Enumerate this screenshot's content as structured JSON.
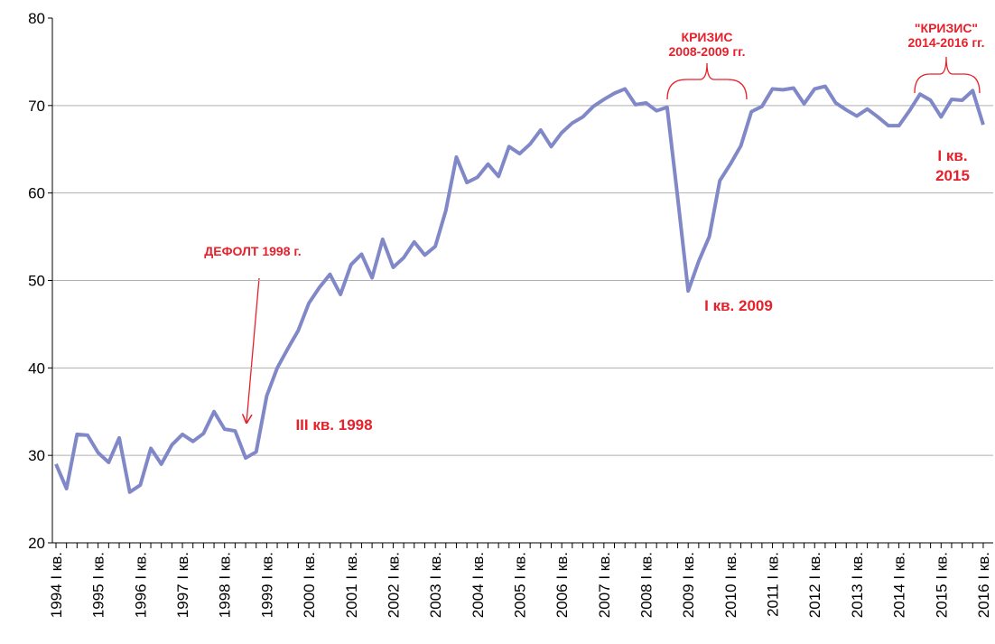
{
  "chart_data": {
    "type": "line",
    "categories": [
      "1994 I кв.",
      null,
      null,
      null,
      "1995 I кв.",
      null,
      null,
      null,
      "1996 I кв.",
      null,
      null,
      null,
      "1997 I кв.",
      null,
      null,
      null,
      "1998 I кв.",
      null,
      null,
      null,
      "1999 I кв.",
      null,
      null,
      null,
      "2000 I кв.",
      null,
      null,
      null,
      "2001 I кв.",
      null,
      null,
      null,
      "2002 I кв.",
      null,
      null,
      null,
      "2003 I кв.",
      null,
      null,
      null,
      "2004 I кв.",
      null,
      null,
      null,
      "2005 I кв.",
      null,
      null,
      null,
      "2006 I кв.",
      null,
      null,
      null,
      "2007  I кв.",
      null,
      null,
      null,
      "2008  I кв.",
      null,
      null,
      null,
      "2009  I кв.",
      null,
      null,
      null,
      "2010  I кв.",
      null,
      null,
      null,
      "2011  I кв.",
      null,
      null,
      null,
      "2012  I кв.",
      null,
      null,
      null,
      "2013  I кв.",
      null,
      null,
      null,
      "2014  I кв.",
      null,
      null,
      null,
      "2015  I кв.",
      null,
      null,
      null,
      "2016  I кв."
    ],
    "series": [
      {
        "color": "#8088c8",
        "values": [
          29.0,
          26.2,
          32.4,
          32.3,
          30.3,
          29.2,
          32.0,
          25.8,
          26.6,
          30.8,
          29.0,
          31.2,
          32.4,
          31.6,
          32.5,
          35.0,
          33.0,
          32.8,
          29.7,
          30.4,
          36.8,
          40.0,
          42.2,
          44.3,
          47.4,
          49.2,
          50.7,
          48.4,
          51.8,
          53.0,
          50.3,
          54.7,
          51.5,
          52.6,
          54.4,
          52.9,
          53.9,
          58.0,
          64.1,
          61.2,
          61.8,
          63.3,
          61.9,
          65.3,
          64.5,
          65.6,
          67.2,
          65.3,
          66.9,
          68.0,
          68.7,
          69.9,
          70.7,
          71.4,
          71.9,
          70.1,
          70.3,
          69.4,
          69.8,
          59.5,
          48.8,
          52.2,
          55.0,
          61.4,
          63.3,
          65.4,
          69.3,
          69.9,
          71.9,
          71.8,
          72.0,
          70.2,
          71.9,
          72.2,
          70.3,
          69.5,
          68.8,
          69.6,
          68.7,
          67.7,
          67.7,
          69.4,
          71.3,
          70.6,
          68.7,
          70.7,
          70.6,
          71.7,
          67.8
        ]
      }
    ],
    "ylim": [
      20,
      80
    ],
    "yticks": [
      20,
      30,
      40,
      50,
      60,
      70,
      80
    ],
    "grid": true,
    "annotations": [
      {
        "lines": [
          "ДЕФОЛТ 1998 г."
        ]
      },
      {
        "lines": [
          "III кв. 1998"
        ]
      },
      {
        "lines": [
          "I кв. 2009"
        ]
      },
      {
        "lines": [
          "КРИЗИС",
          "2008-2009 гг."
        ]
      },
      {
        "lines": [
          "\"КРИЗИС\"",
          "2014-2016 гг."
        ]
      },
      {
        "lines": [
          "I кв.",
          "2015"
        ]
      }
    ]
  }
}
